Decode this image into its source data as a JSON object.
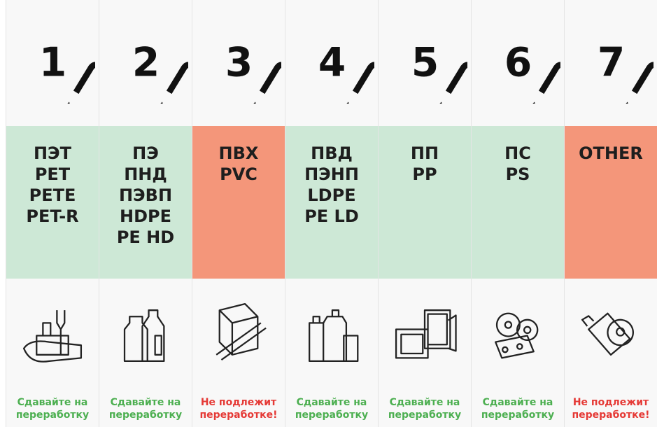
{
  "columns": [
    {
      "number": "1",
      "codes": [
        "ПЭТ",
        "PET",
        "PETE",
        "PET-R"
      ],
      "band_color": "#cde8d6",
      "status": [
        "Сдавайте на",
        "переработку"
      ],
      "status_color": "#4caf50"
    },
    {
      "number": "2",
      "codes": [
        "ПЭ",
        "ПНД",
        "ПЭВП",
        "HDPE",
        "PE HD"
      ],
      "band_color": "#cde8d6",
      "status": [
        "Сдавайте на",
        "переработку"
      ],
      "status_color": "#4caf50"
    },
    {
      "number": "3",
      "codes": [
        "ПВХ",
        "PVC"
      ],
      "band_color": "#f4967a",
      "status": [
        "Не подлежит",
        "переработке!"
      ],
      "status_color": "#e53935"
    },
    {
      "number": "4",
      "codes": [
        "ПВД",
        "ПЭНП",
        "LDPE",
        "PE LD"
      ],
      "band_color": "#cde8d6",
      "status": [
        "Сдавайте на",
        "переработку"
      ],
      "status_color": "#4caf50"
    },
    {
      "number": "5",
      "codes": [
        "ПП",
        "PP"
      ],
      "band_color": "#cde8d6",
      "status": [
        "Сдавайте на",
        "переработку"
      ],
      "status_color": "#4caf50"
    },
    {
      "number": "6",
      "codes": [
        "ПС",
        "PS"
      ],
      "band_color": "#cde8d6",
      "status": [
        "Сдавайте на",
        "переработку"
      ],
      "status_color": "#4caf50"
    },
    {
      "number": "7",
      "codes": [
        "OTHER"
      ],
      "band_color": "#f4967a",
      "status": [
        "Не подлежит",
        "переработке!"
      ],
      "status_color": "#e53935"
    }
  ]
}
